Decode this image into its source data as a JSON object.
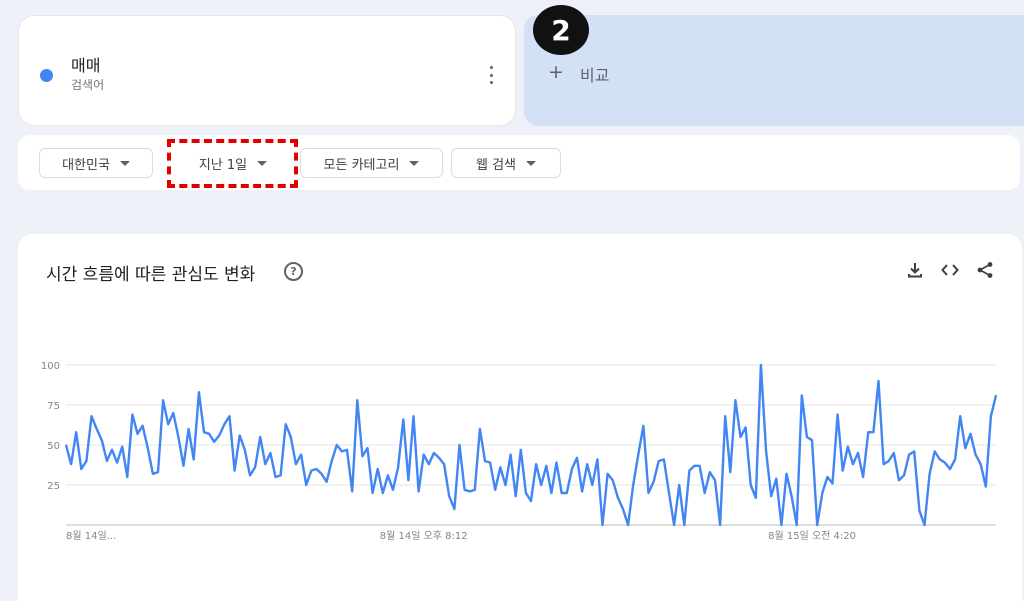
{
  "term": {
    "name": "매매",
    "type": "검색어",
    "color": "#4285f4"
  },
  "compare": {
    "plus": "+",
    "label": "비교"
  },
  "step_badge": "2",
  "filters": [
    {
      "label": "대한민국"
    },
    {
      "label": "지난 1일"
    },
    {
      "label": "모든 카테고리"
    },
    {
      "label": "웹 검색"
    }
  ],
  "highlight_color": "#e00000",
  "chart_section": {
    "title": "시간 흐름에 따른 관심도 변화",
    "help": "?",
    "icons": [
      "download-icon",
      "embed-code-icon",
      "share-icon"
    ]
  },
  "chart_data": {
    "type": "line",
    "title": "",
    "xlabel": "",
    "ylabel": "",
    "ylim": [
      0,
      100
    ],
    "yticks": [
      25,
      50,
      75,
      100
    ],
    "x_tick_labels": [
      "8월 14일...",
      "8월 14일 오후 8:12",
      "8월 15일 오전 4:20"
    ],
    "x_tick_index": [
      0,
      70,
      146
    ],
    "grid": true,
    "line_color": "#4285f4",
    "series": [
      {
        "values": [
          50,
          38,
          58,
          35,
          40,
          68,
          60,
          53,
          40,
          47,
          39,
          49,
          30,
          69,
          57,
          62,
          48,
          32,
          33,
          78,
          63,
          70,
          55,
          37,
          60,
          41,
          83,
          58,
          57,
          52,
          56,
          63,
          68,
          34,
          56,
          47,
          31,
          36,
          55,
          38,
          45,
          30,
          31,
          63,
          55,
          38,
          44,
          25,
          34,
          35,
          32,
          27,
          40,
          50,
          46,
          47,
          21,
          78,
          43,
          48,
          20,
          35,
          20,
          31,
          22,
          36,
          66,
          28,
          68,
          21,
          44,
          38,
          45,
          42,
          38,
          18,
          10,
          50,
          22,
          21,
          22,
          60,
          40,
          39,
          22,
          36,
          25,
          44,
          18,
          47,
          20,
          15,
          38,
          25,
          37,
          20,
          39,
          20,
          20,
          35,
          42,
          21,
          38,
          25,
          41,
          0,
          32,
          28,
          17,
          10,
          0,
          25,
          44,
          62,
          20,
          27,
          40,
          41,
          20,
          0,
          25,
          0,
          34,
          37,
          37,
          20,
          33,
          28,
          0,
          68,
          33,
          78,
          55,
          61,
          25,
          17,
          100,
          46,
          18,
          29,
          0,
          32,
          18,
          0,
          81,
          55,
          53,
          0,
          20,
          30,
          26,
          69,
          34,
          49,
          38,
          45,
          30,
          58,
          58,
          90,
          38,
          40,
          45,
          28,
          31,
          44,
          46,
          9,
          0,
          32,
          46,
          41,
          39,
          35,
          41,
          68,
          48,
          57,
          44,
          38,
          24,
          68,
          81
        ]
      }
    ]
  }
}
